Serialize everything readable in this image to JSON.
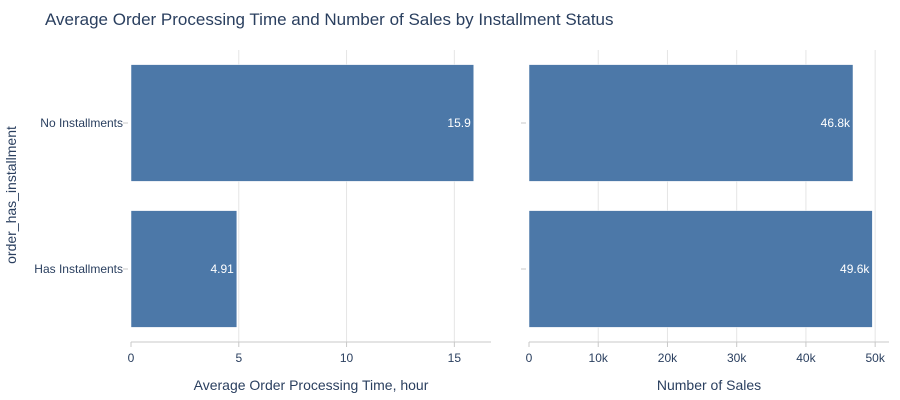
{
  "title": "Average Order Processing Time and Number of Sales by Installment Status",
  "y_axis_title": "order_has_installment",
  "colors": {
    "bar": "#4c78a8",
    "grid": "#e5e5e5",
    "axis_line": "#c8c8c8",
    "text": "#2a3f5f"
  },
  "chart_data": [
    {
      "type": "bar",
      "orientation": "horizontal",
      "categories": [
        "No Installments",
        "Has Installments"
      ],
      "values": [
        15.9,
        4.91
      ],
      "value_labels": [
        "15.9",
        "4.91"
      ],
      "xlabel": "Average Order Processing Time, hour",
      "xlim": [
        0,
        16.7
      ],
      "x_ticks": [
        0,
        5,
        10,
        15
      ],
      "x_tick_labels": [
        "0",
        "5",
        "10",
        "15"
      ],
      "grid": true
    },
    {
      "type": "bar",
      "orientation": "horizontal",
      "categories": [
        "No Installments",
        "Has Installments"
      ],
      "values": [
        46800,
        49600
      ],
      "value_labels": [
        "46.8k",
        "49.6k"
      ],
      "xlabel": "Number of Sales",
      "xlim": [
        0,
        52000
      ],
      "x_ticks": [
        0,
        10000,
        20000,
        30000,
        40000,
        50000
      ],
      "x_tick_labels": [
        "0",
        "10k",
        "20k",
        "30k",
        "40k",
        "50k"
      ],
      "grid": true
    }
  ]
}
